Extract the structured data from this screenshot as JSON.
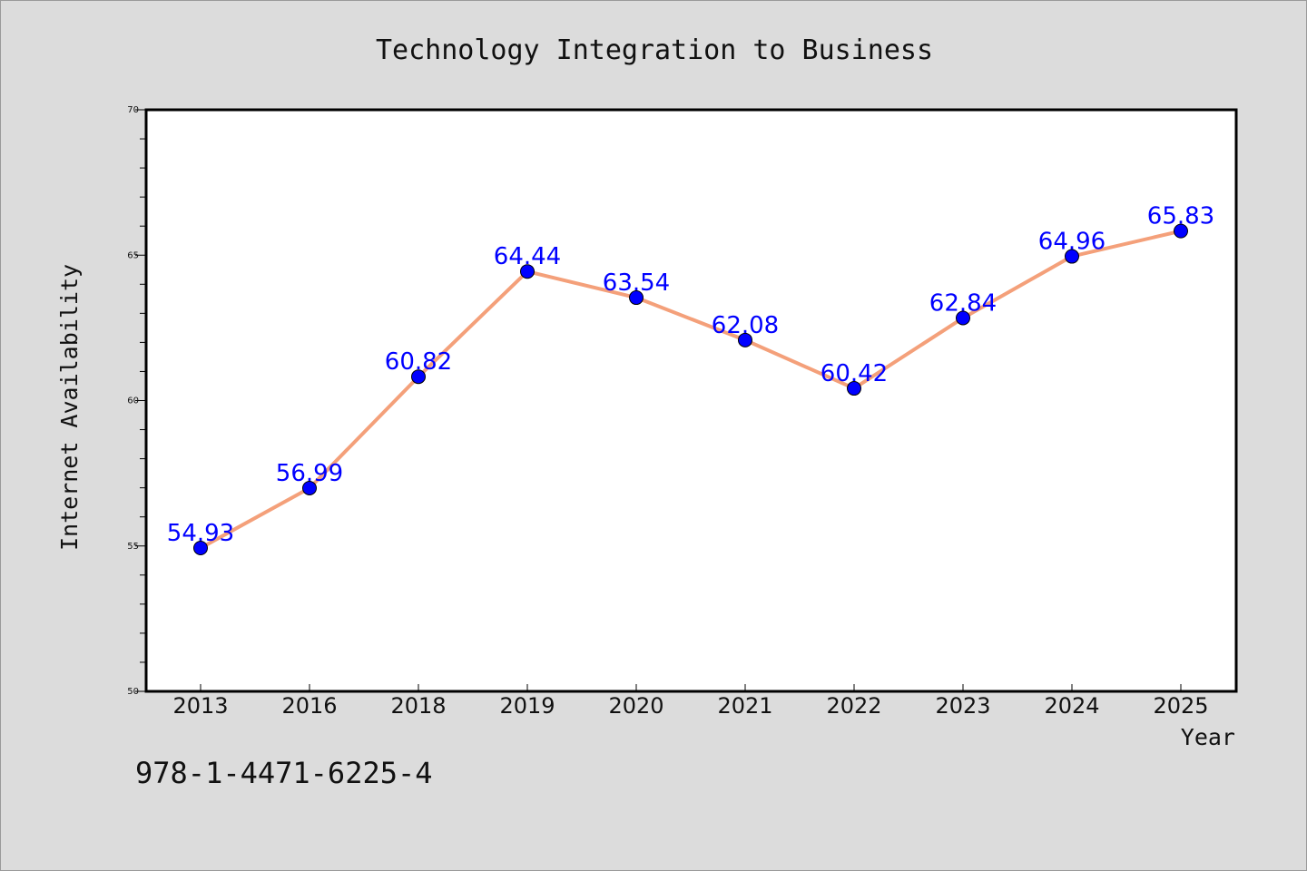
{
  "chart_data": {
    "type": "line",
    "title": "Technology Integration to Business",
    "xlabel": "Year",
    "ylabel": "Internet Availability",
    "categories": [
      "2013",
      "2016",
      "2018",
      "2019",
      "2020",
      "2021",
      "2022",
      "2023",
      "2024",
      "2025"
    ],
    "series": [
      {
        "values": [
          54.93,
          56.99,
          60.82,
          64.44,
          63.54,
          62.08,
          60.42,
          62.84,
          64.96,
          65.83
        ],
        "labels": [
          "54.93",
          "56.99",
          "60.82",
          "64.44",
          "63.54",
          "62.08",
          "60.42",
          "62.84",
          "64.96",
          "65.83"
        ],
        "line_color": "#f4a07a",
        "marker_color": "#0000ff"
      }
    ],
    "ylim": [
      50,
      70
    ],
    "yticks": [
      "50",
      "55",
      "60",
      "65",
      "70"
    ],
    "grid": false,
    "legend": "none"
  },
  "footer": {
    "isbn": "978-1-4471-6225-4"
  }
}
